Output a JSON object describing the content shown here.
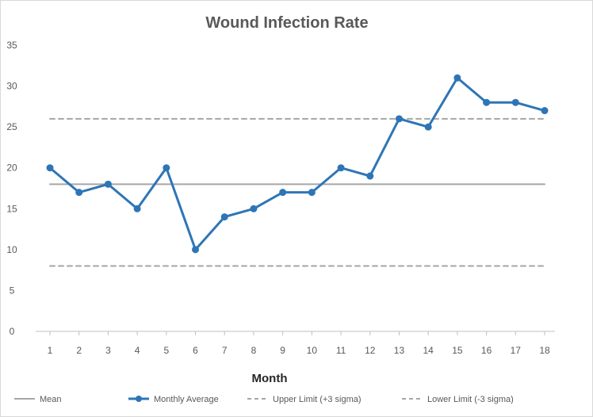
{
  "chart_data": {
    "type": "line",
    "title": "Wound Infection Rate",
    "xlabel": "Month",
    "ylabel": "",
    "categories": [
      "1",
      "2",
      "3",
      "4",
      "5",
      "6",
      "7",
      "8",
      "9",
      "10",
      "11",
      "12",
      "13",
      "14",
      "15",
      "16",
      "17",
      "18"
    ],
    "ylim": [
      0,
      35
    ],
    "yticks": [
      0,
      5,
      10,
      15,
      20,
      25,
      30,
      35
    ],
    "grid": false,
    "legend_position": "bottom",
    "series": [
      {
        "name": "Mean",
        "style": "solid",
        "color": "#a6a6a6",
        "values": [
          18,
          18,
          18,
          18,
          18,
          18,
          18,
          18,
          18,
          18,
          18,
          18,
          18,
          18,
          18,
          18,
          18,
          18
        ]
      },
      {
        "name": "Monthly Average",
        "style": "solid-markers",
        "color": "#2e75b6",
        "values": [
          20,
          17,
          18,
          15,
          20,
          10,
          14,
          15,
          17,
          17,
          20,
          19,
          26,
          25,
          31,
          28,
          28,
          27
        ]
      },
      {
        "name": "Upper Limit (+3 sigma)",
        "style": "dashed",
        "color": "#a6a6a6",
        "values": [
          26,
          26,
          26,
          26,
          26,
          26,
          26,
          26,
          26,
          26,
          26,
          26,
          26,
          26,
          26,
          26,
          26,
          26
        ]
      },
      {
        "name": "Lower Limit (-3 sigma)",
        "style": "dashed",
        "color": "#a6a6a6",
        "values": [
          8,
          8,
          8,
          8,
          8,
          8,
          8,
          8,
          8,
          8,
          8,
          8,
          8,
          8,
          8,
          8,
          8,
          8
        ]
      }
    ]
  }
}
